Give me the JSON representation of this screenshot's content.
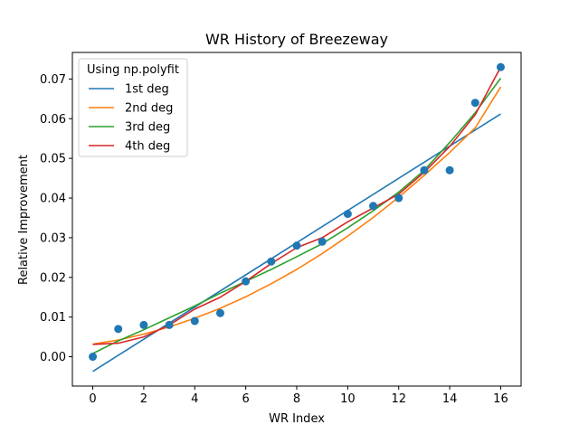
{
  "chart_data": {
    "type": "scatter",
    "title": "WR History of Breezeway",
    "xlabel": "WR Index",
    "ylabel": "Relative Improvement",
    "xlim": [
      -0.8,
      16.8
    ],
    "ylim": [
      -0.0074,
      0.0767
    ],
    "xticks": [
      0,
      2,
      4,
      6,
      8,
      10,
      12,
      14,
      16
    ],
    "xtick_labels": [
      "0",
      "2",
      "4",
      "6",
      "8",
      "10",
      "12",
      "14",
      "16"
    ],
    "yticks": [
      0.0,
      0.01,
      0.02,
      0.03,
      0.04,
      0.05,
      0.06,
      0.07
    ],
    "ytick_labels": [
      "0.00",
      "0.01",
      "0.02",
      "0.03",
      "0.04",
      "0.05",
      "0.06",
      "0.07"
    ],
    "grid": false,
    "points": {
      "color": "#1f77b4",
      "x": [
        0,
        1,
        2,
        3,
        4,
        5,
        6,
        7,
        8,
        9,
        10,
        11,
        12,
        13,
        14,
        15,
        16
      ],
      "y": [
        0.0,
        0.007,
        0.008,
        0.008,
        0.009,
        0.011,
        0.019,
        0.024,
        0.028,
        0.029,
        0.036,
        0.038,
        0.04,
        0.047,
        0.047,
        0.064,
        0.073
      ]
    },
    "series": [
      {
        "name": "1st deg",
        "color": "#1f77b4",
        "x": [
          0,
          16
        ],
        "y": [
          -0.0037,
          0.0612
        ]
      },
      {
        "name": "2nd deg",
        "color": "#ff7f0e",
        "x": [
          0,
          1,
          2,
          3,
          4,
          5,
          6,
          7,
          8,
          9,
          10,
          11,
          12,
          13,
          14,
          15,
          16
        ],
        "y": [
          0.0032,
          0.0042,
          0.0057,
          0.0075,
          0.0097,
          0.0122,
          0.0151,
          0.0184,
          0.022,
          0.026,
          0.0304,
          0.0351,
          0.0402,
          0.0457,
          0.0515,
          0.0577,
          0.068
        ]
      },
      {
        "name": "3rd deg",
        "color": "#2ca02c",
        "x": [
          0,
          1,
          2,
          3,
          4,
          5,
          6,
          7,
          8,
          9,
          10,
          11,
          12,
          13,
          14,
          15,
          16
        ],
        "y": [
          0.0008,
          0.004,
          0.0068,
          0.0098,
          0.0128,
          0.016,
          0.019,
          0.022,
          0.0252,
          0.0285,
          0.0325,
          0.0368,
          0.0415,
          0.047,
          0.054,
          0.0615,
          0.0702
        ]
      },
      {
        "name": "4th deg",
        "color": "#d62728",
        "x": [
          0,
          1,
          2,
          3,
          4,
          5,
          6,
          7,
          8,
          9,
          10,
          11,
          12,
          13,
          14,
          15,
          16
        ],
        "y": [
          0.0031,
          0.0034,
          0.005,
          0.008,
          0.012,
          0.015,
          0.019,
          0.0235,
          0.0275,
          0.03,
          0.034,
          0.0375,
          0.041,
          0.0465,
          0.053,
          0.061,
          0.073
        ]
      }
    ],
    "legend": {
      "title": "Using np.polyfit",
      "position": "top-left",
      "entries": [
        "1st deg",
        "2nd deg",
        "3rd deg",
        "4th deg"
      ]
    }
  }
}
